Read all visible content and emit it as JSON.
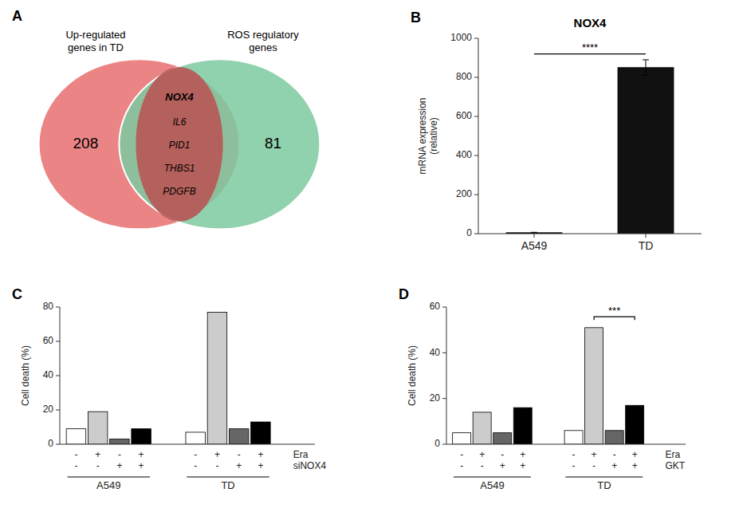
{
  "chart_data": [
    {
      "type": "venn",
      "panel": "A",
      "sets": [
        {
          "name": "Up-regulated\ngenes in TD",
          "count": 208,
          "color": "#E87070"
        },
        {
          "name": "ROS regulatory\ngenes",
          "count": 81,
          "color": "#7DC9A0"
        }
      ],
      "overlap": {
        "color": "#B85555",
        "items": [
          "NOX4",
          "IL6",
          "PID1",
          "THBS1",
          "PDGFB"
        ]
      }
    },
    {
      "type": "bar",
      "panel": "B",
      "title": "NOX4",
      "ylabel": "mRNA expression\n(relative)",
      "categories": [
        "A549",
        "TD"
      ],
      "values": [
        5,
        850
      ],
      "errors": [
        2,
        40
      ],
      "color": "#111111",
      "ylim": [
        0,
        1000
      ],
      "yticks": [
        0,
        200,
        400,
        600,
        800,
        1000
      ],
      "significance": {
        "text": "****",
        "between": [
          "A549",
          "TD"
        ]
      }
    },
    {
      "type": "bar",
      "panel": "C",
      "ylabel": "Cell death (%)",
      "categories": [
        "A549",
        "TD"
      ],
      "series": [
        {
          "color": "#FFFFFF",
          "values": [
            9,
            7
          ]
        },
        {
          "color": "#CCCCCC",
          "values": [
            19,
            77
          ]
        },
        {
          "color": "#666666",
          "values": [
            3,
            9
          ]
        },
        {
          "color": "#000000",
          "values": [
            9,
            13
          ]
        }
      ],
      "conditions": [
        {
          "name": "Era",
          "signs": [
            "-",
            "+",
            "-",
            "+"
          ]
        },
        {
          "name": "siNOX4",
          "signs": [
            "-",
            "-",
            "+",
            "+"
          ]
        }
      ],
      "ylim": [
        0,
        80
      ],
      "yticks": [
        0,
        20,
        40,
        60,
        80
      ]
    },
    {
      "type": "bar",
      "panel": "D",
      "ylabel": "Cell death (%)",
      "categories": [
        "A549",
        "TD"
      ],
      "series": [
        {
          "color": "#FFFFFF",
          "values": [
            5,
            6
          ]
        },
        {
          "color": "#CCCCCC",
          "values": [
            14,
            51
          ]
        },
        {
          "color": "#666666",
          "values": [
            5,
            6
          ]
        },
        {
          "color": "#000000",
          "values": [
            16,
            17
          ]
        }
      ],
      "conditions": [
        {
          "name": "Era",
          "signs": [
            "-",
            "+",
            "-",
            "+"
          ]
        },
        {
          "name": "GKT",
          "signs": [
            "-",
            "-",
            "+",
            "+"
          ]
        }
      ],
      "ylim": [
        0,
        60
      ],
      "yticks": [
        0,
        20,
        40,
        60
      ],
      "significance": {
        "text": "***",
        "category": "TD",
        "series": [
          1,
          3
        ]
      }
    }
  ]
}
